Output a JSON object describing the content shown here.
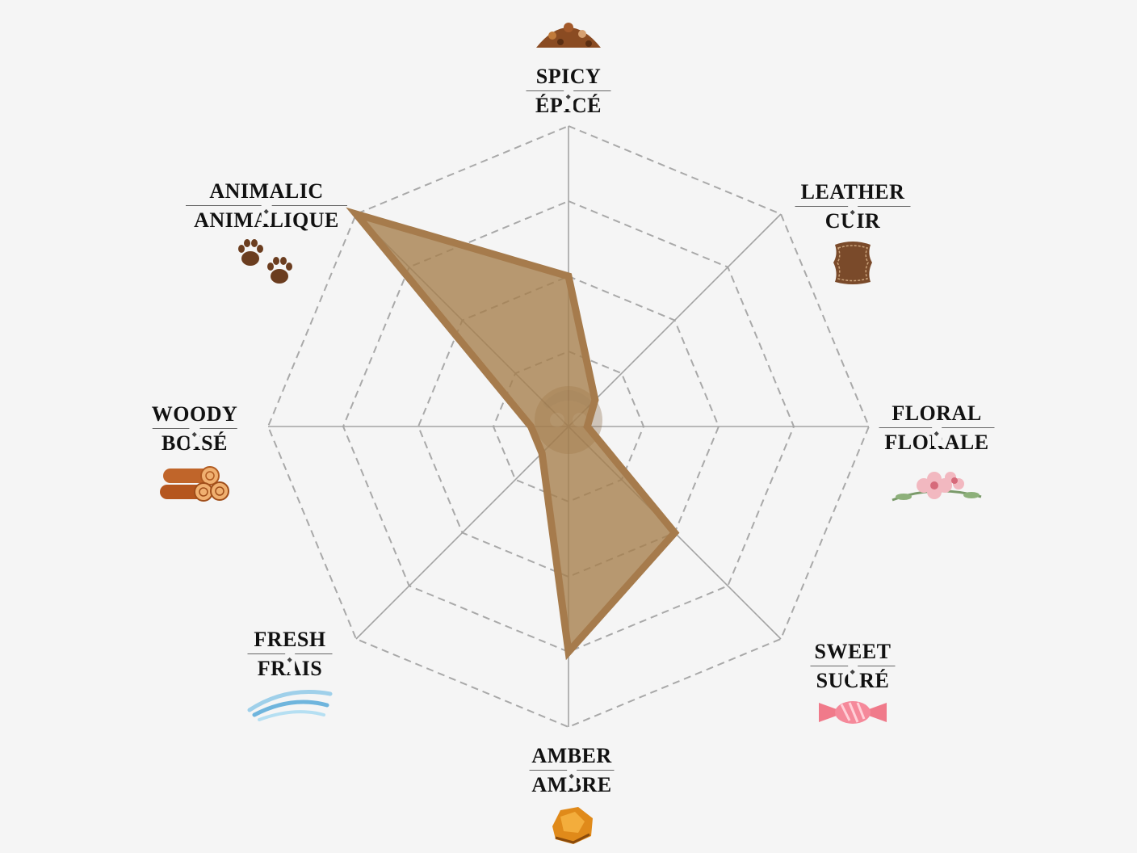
{
  "chart_data": {
    "type": "radar",
    "axes": [
      {
        "en": "SPICY",
        "fr": "ÉPICÉ",
        "icon": "spice-icon"
      },
      {
        "en": "LEATHER",
        "fr": "CUIR",
        "icon": "leather-icon"
      },
      {
        "en": "FLORAL",
        "fr": "FLORALE",
        "icon": "flower-icon"
      },
      {
        "en": "SWEET",
        "fr": "SUCRÉ",
        "icon": "candy-icon"
      },
      {
        "en": "AMBER",
        "fr": "AMBRE",
        "icon": "amber-icon"
      },
      {
        "en": "FRESH",
        "fr": "FRAIS",
        "icon": "wind-icon"
      },
      {
        "en": "WOODY",
        "fr": "BOISÉ",
        "icon": "logs-icon"
      },
      {
        "en": "ANIMALIC",
        "fr": "ANIMALIQUE",
        "icon": "paw-icon"
      }
    ],
    "values": [
      2,
      0.5,
      0.25,
      2,
      3,
      0.5,
      0.5,
      4
    ],
    "range": [
      0,
      4
    ],
    "rings": 4,
    "colors": {
      "fill": "#a57d4a",
      "stroke": "#a67b4c",
      "grid": "#a9a9a9",
      "spokes": "#a3a3a3",
      "background": "#f5f5f5"
    }
  }
}
